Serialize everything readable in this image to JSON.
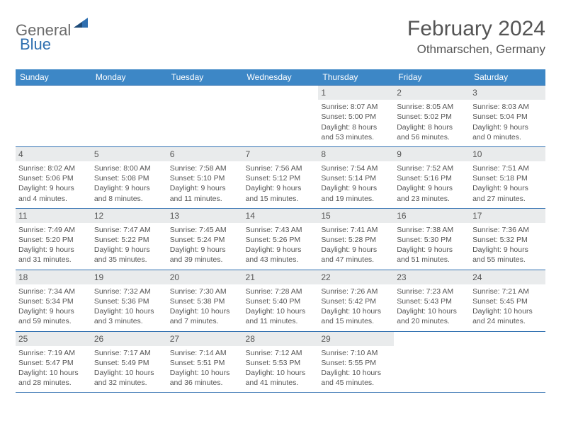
{
  "logo": {
    "part1": "General",
    "part2": "Blue"
  },
  "title": "February 2024",
  "location": "Othmarschen, Germany",
  "colors": {
    "header_bg": "#3d87c6",
    "header_text": "#ffffff",
    "border": "#2f6fb0",
    "daynum_bg": "#e9ebec",
    "text": "#555555",
    "logo_accent": "#2f6fb0"
  },
  "weekdays": [
    "Sunday",
    "Monday",
    "Tuesday",
    "Wednesday",
    "Thursday",
    "Friday",
    "Saturday"
  ],
  "weeks": [
    [
      null,
      null,
      null,
      null,
      {
        "n": "1",
        "sr": "8:07 AM",
        "ss": "5:00 PM",
        "dl": "8 hours and 53 minutes."
      },
      {
        "n": "2",
        "sr": "8:05 AM",
        "ss": "5:02 PM",
        "dl": "8 hours and 56 minutes."
      },
      {
        "n": "3",
        "sr": "8:03 AM",
        "ss": "5:04 PM",
        "dl": "9 hours and 0 minutes."
      }
    ],
    [
      {
        "n": "4",
        "sr": "8:02 AM",
        "ss": "5:06 PM",
        "dl": "9 hours and 4 minutes."
      },
      {
        "n": "5",
        "sr": "8:00 AM",
        "ss": "5:08 PM",
        "dl": "9 hours and 8 minutes."
      },
      {
        "n": "6",
        "sr": "7:58 AM",
        "ss": "5:10 PM",
        "dl": "9 hours and 11 minutes."
      },
      {
        "n": "7",
        "sr": "7:56 AM",
        "ss": "5:12 PM",
        "dl": "9 hours and 15 minutes."
      },
      {
        "n": "8",
        "sr": "7:54 AM",
        "ss": "5:14 PM",
        "dl": "9 hours and 19 minutes."
      },
      {
        "n": "9",
        "sr": "7:52 AM",
        "ss": "5:16 PM",
        "dl": "9 hours and 23 minutes."
      },
      {
        "n": "10",
        "sr": "7:51 AM",
        "ss": "5:18 PM",
        "dl": "9 hours and 27 minutes."
      }
    ],
    [
      {
        "n": "11",
        "sr": "7:49 AM",
        "ss": "5:20 PM",
        "dl": "9 hours and 31 minutes."
      },
      {
        "n": "12",
        "sr": "7:47 AM",
        "ss": "5:22 PM",
        "dl": "9 hours and 35 minutes."
      },
      {
        "n": "13",
        "sr": "7:45 AM",
        "ss": "5:24 PM",
        "dl": "9 hours and 39 minutes."
      },
      {
        "n": "14",
        "sr": "7:43 AM",
        "ss": "5:26 PM",
        "dl": "9 hours and 43 minutes."
      },
      {
        "n": "15",
        "sr": "7:41 AM",
        "ss": "5:28 PM",
        "dl": "9 hours and 47 minutes."
      },
      {
        "n": "16",
        "sr": "7:38 AM",
        "ss": "5:30 PM",
        "dl": "9 hours and 51 minutes."
      },
      {
        "n": "17",
        "sr": "7:36 AM",
        "ss": "5:32 PM",
        "dl": "9 hours and 55 minutes."
      }
    ],
    [
      {
        "n": "18",
        "sr": "7:34 AM",
        "ss": "5:34 PM",
        "dl": "9 hours and 59 minutes."
      },
      {
        "n": "19",
        "sr": "7:32 AM",
        "ss": "5:36 PM",
        "dl": "10 hours and 3 minutes."
      },
      {
        "n": "20",
        "sr": "7:30 AM",
        "ss": "5:38 PM",
        "dl": "10 hours and 7 minutes."
      },
      {
        "n": "21",
        "sr": "7:28 AM",
        "ss": "5:40 PM",
        "dl": "10 hours and 11 minutes."
      },
      {
        "n": "22",
        "sr": "7:26 AM",
        "ss": "5:42 PM",
        "dl": "10 hours and 15 minutes."
      },
      {
        "n": "23",
        "sr": "7:23 AM",
        "ss": "5:43 PM",
        "dl": "10 hours and 20 minutes."
      },
      {
        "n": "24",
        "sr": "7:21 AM",
        "ss": "5:45 PM",
        "dl": "10 hours and 24 minutes."
      }
    ],
    [
      {
        "n": "25",
        "sr": "7:19 AM",
        "ss": "5:47 PM",
        "dl": "10 hours and 28 minutes."
      },
      {
        "n": "26",
        "sr": "7:17 AM",
        "ss": "5:49 PM",
        "dl": "10 hours and 32 minutes."
      },
      {
        "n": "27",
        "sr": "7:14 AM",
        "ss": "5:51 PM",
        "dl": "10 hours and 36 minutes."
      },
      {
        "n": "28",
        "sr": "7:12 AM",
        "ss": "5:53 PM",
        "dl": "10 hours and 41 minutes."
      },
      {
        "n": "29",
        "sr": "7:10 AM",
        "ss": "5:55 PM",
        "dl": "10 hours and 45 minutes."
      },
      null,
      null
    ]
  ],
  "labels": {
    "sunrise": "Sunrise:",
    "sunset": "Sunset:",
    "daylight": "Daylight:"
  }
}
